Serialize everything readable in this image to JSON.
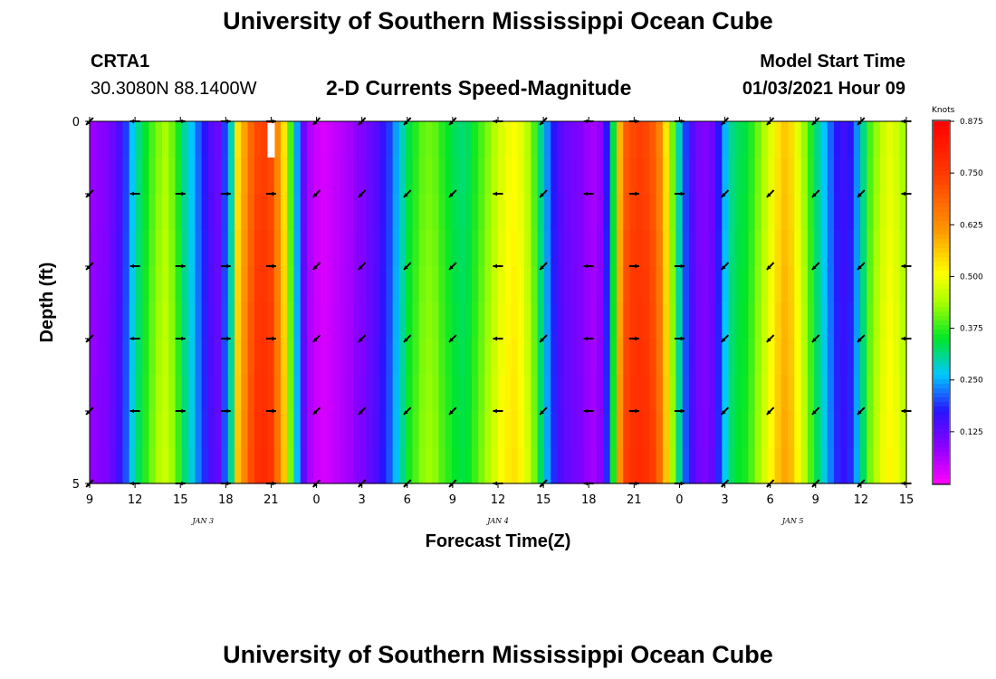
{
  "header": {
    "title": "University of Southern Mississippi Ocean Cube",
    "station": "CRTA1",
    "coords": "30.3080N 88.1400W",
    "subtitle": "2-D Currents Speed-Magnitude",
    "model_label": "Model Start Time",
    "model_time": "01/03/2021 Hour 09"
  },
  "footer": {
    "title": "University of Southern Mississippi Ocean Cube"
  },
  "chart_data": {
    "type": "heatmap",
    "xlabel": "Forecast Time(Z)",
    "ylabel": "Depth (ft)",
    "xlim": [
      0,
      54
    ],
    "ylim": [
      0,
      5
    ],
    "x_ticks": [
      "9",
      "12",
      "15",
      "18",
      "21",
      "0",
      "3",
      "6",
      "9",
      "12",
      "15",
      "18",
      "21",
      "0",
      "3",
      "6",
      "9",
      "12",
      "15"
    ],
    "y_ticks": [
      "0",
      "5"
    ],
    "date_labels": [
      {
        "text": "JAN 3",
        "hour": 7.5
      },
      {
        "text": "JAN 4",
        "hour": 27
      },
      {
        "text": "JAN 5",
        "hour": 46.5
      }
    ],
    "speed_profile_knots": [
      0.08,
      0.09,
      0.1,
      0.12,
      0.15,
      0.2,
      0.27,
      0.32,
      0.36,
      0.4,
      0.43,
      0.45,
      0.42,
      0.37,
      0.31,
      0.27,
      0.22,
      0.18,
      0.14,
      0.12,
      0.2,
      0.3,
      0.55,
      0.62,
      0.7,
      0.75,
      0.76,
      0.74,
      0.65,
      0.55,
      0.4,
      0.25,
      0.12,
      0.06,
      0.04,
      0.03,
      0.04,
      0.05,
      0.06,
      0.07,
      0.09,
      0.1,
      0.12,
      0.14,
      0.17,
      0.2,
      0.25,
      0.3,
      0.35,
      0.38,
      0.41,
      0.42,
      0.41,
      0.38,
      0.36,
      0.34,
      0.33,
      0.34,
      0.37,
      0.4,
      0.43,
      0.46,
      0.49,
      0.51,
      0.52,
      0.5,
      0.46,
      0.4,
      0.32,
      0.24,
      0.18,
      0.14,
      0.12,
      0.11,
      0.1,
      0.08,
      0.07,
      0.09,
      0.18,
      0.35,
      0.6,
      0.72,
      0.75,
      0.76,
      0.75,
      0.72,
      0.66,
      0.55,
      0.42,
      0.3,
      0.2,
      0.14,
      0.11,
      0.1,
      0.12,
      0.18,
      0.26,
      0.32,
      0.34,
      0.35,
      0.38,
      0.42,
      0.46,
      0.5,
      0.55,
      0.58,
      0.56,
      0.5,
      0.44,
      0.38,
      0.32,
      0.27,
      0.22,
      0.18,
      0.16,
      0.18,
      0.24,
      0.32,
      0.4,
      0.44,
      0.48,
      0.5,
      0.48,
      0.45
    ],
    "colorbar": {
      "title": "Knots",
      "ticks": [
        "0.875",
        "0.750",
        "0.625",
        "0.500",
        "0.375",
        "0.250",
        "0.125"
      ],
      "range": [
        0,
        0.875
      ]
    },
    "arrow_times": [
      0,
      3,
      6,
      9,
      12,
      15,
      18,
      21,
      24,
      27,
      30,
      33,
      36,
      39,
      42,
      45,
      48,
      51,
      54
    ],
    "arrow_depths": [
      0,
      1,
      2,
      3,
      4,
      5
    ],
    "arrow_directions_deg": [
      135,
      180,
      0,
      0,
      0,
      135,
      135,
      135,
      135,
      180,
      135,
      180,
      0,
      0,
      135,
      135,
      135,
      135,
      180
    ],
    "gap_marker_hour": 12
  }
}
